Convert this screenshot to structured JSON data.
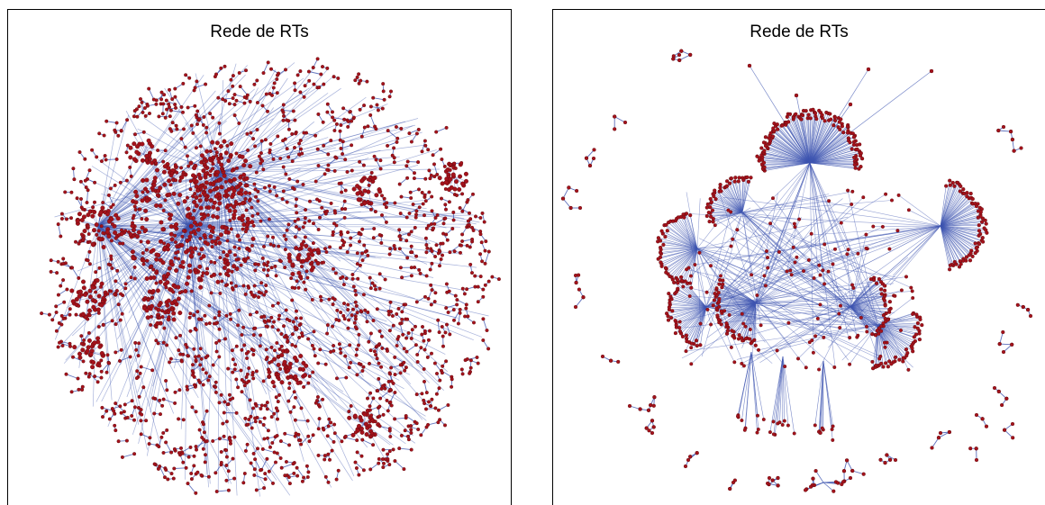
{
  "colors": {
    "edge": "#3f56b0",
    "node": "#a5121b",
    "border": "#000000"
  },
  "panels": [
    {
      "title": "Rede de RTs",
      "style": "dense-hairball"
    },
    {
      "title": "Rede de RTs",
      "style": "hub-spoke"
    }
  ]
}
